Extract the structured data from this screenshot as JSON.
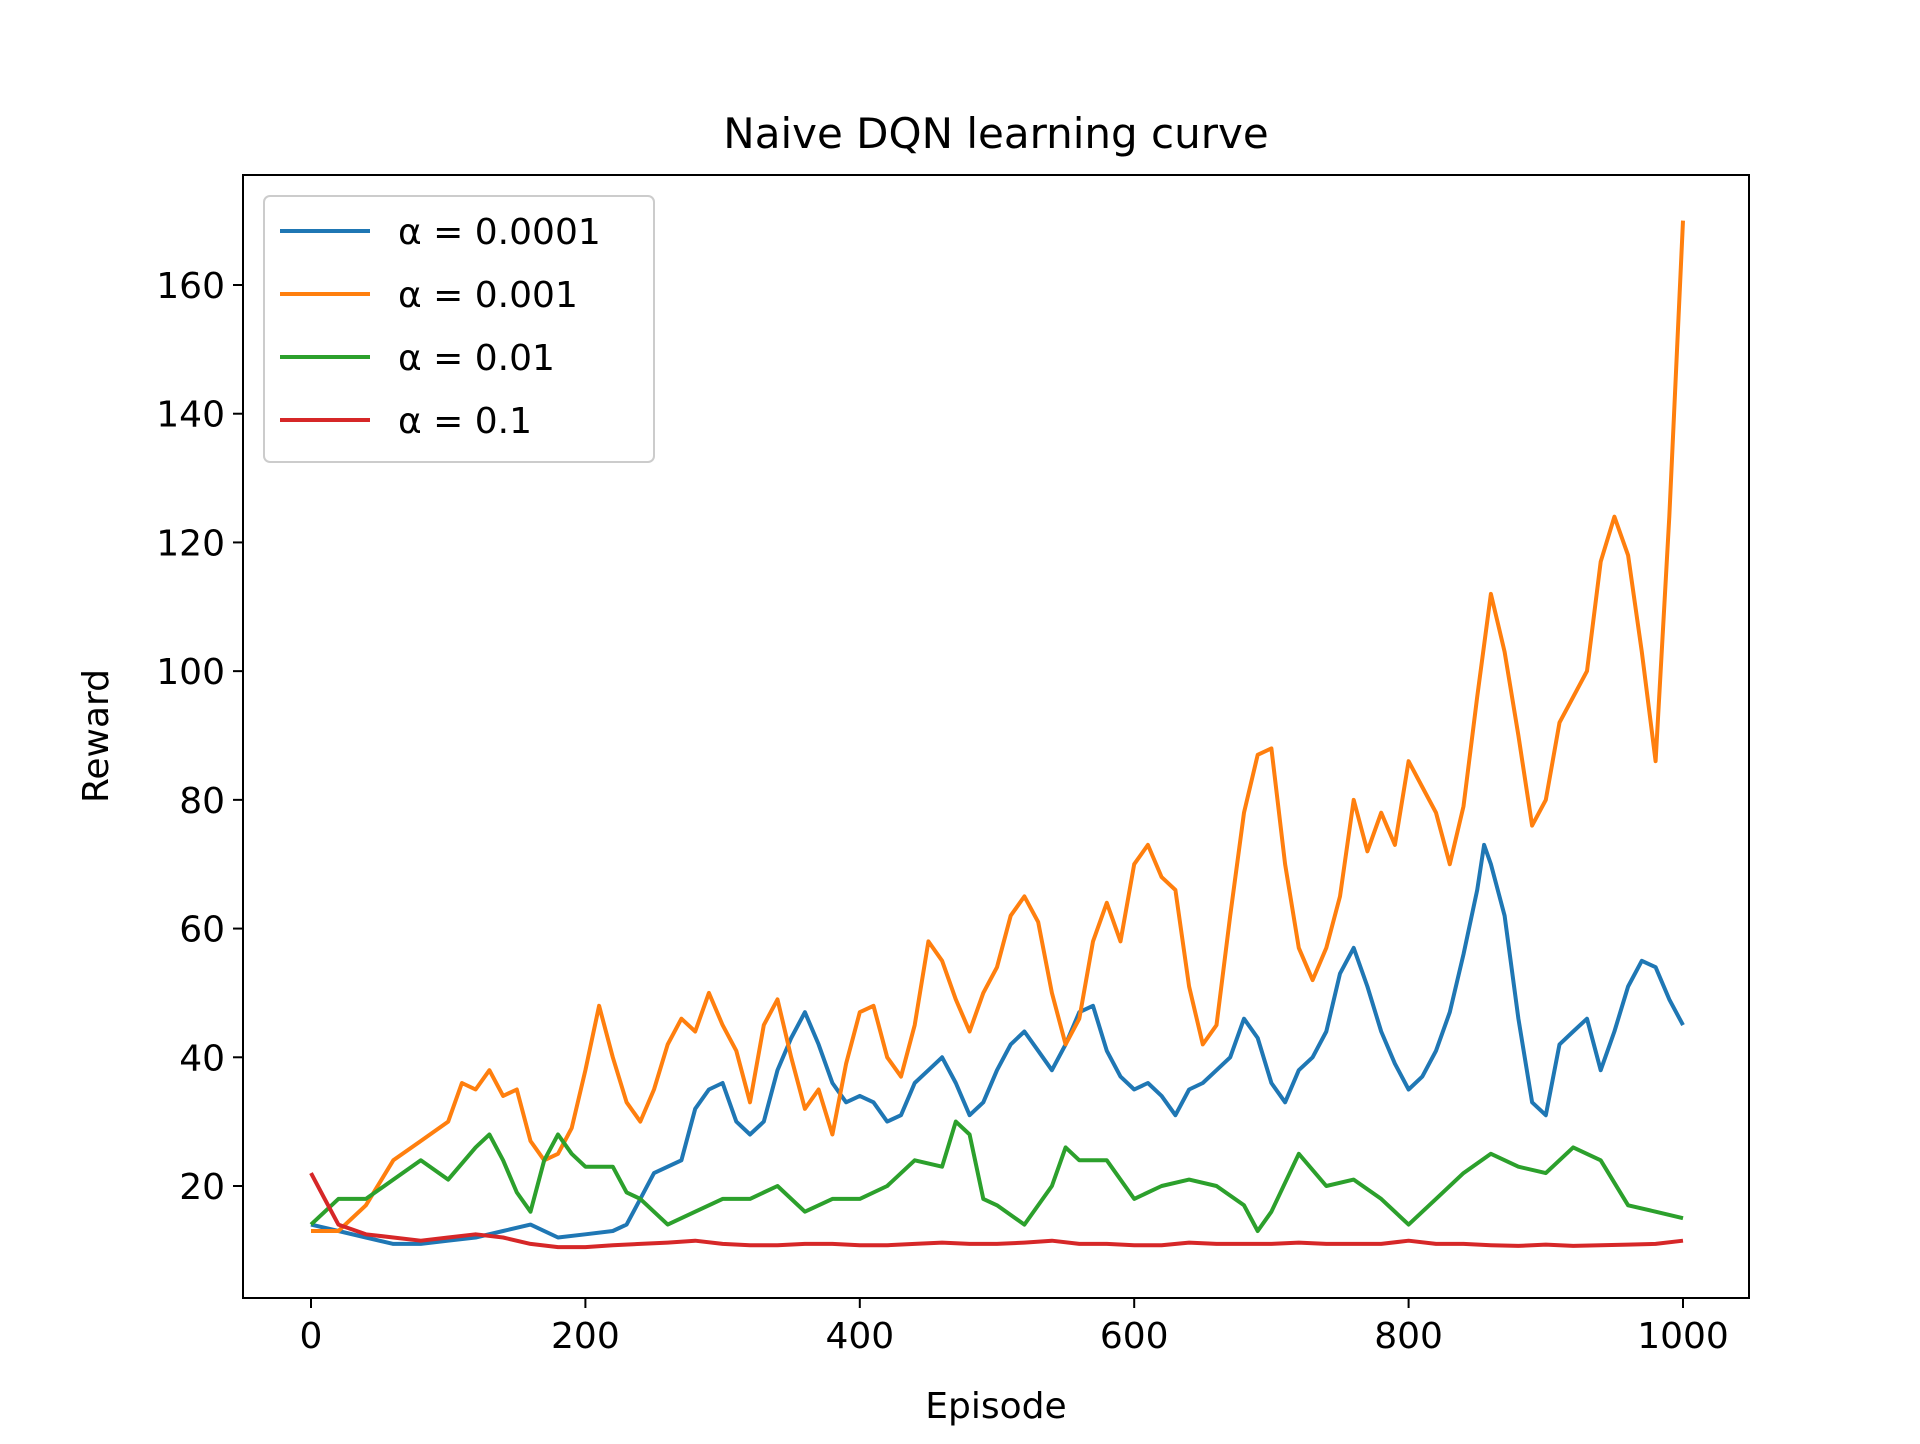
{
  "chart_data": {
    "type": "line",
    "title": "Naive DQN learning curve",
    "xlabel": "Episode",
    "ylabel": "Reward",
    "xlim": [
      -67,
      1450
    ],
    "ylim": [
      -80,
      1900
    ],
    "x_ticks": [
      0,
      200,
      400,
      600,
      800,
      1000
    ],
    "y_ticks": [
      20,
      40,
      60,
      80,
      100,
      120,
      140,
      160
    ],
    "legend_position": "top-left",
    "grid": false,
    "colors": {
      "blue": "#1f77b4",
      "orange": "#ff7f0e",
      "green": "#2ca02c",
      "red": "#d62728"
    },
    "series": [
      {
        "name": "α = 0.0001",
        "color": "#1f77b4",
        "points": [
          [
            0,
            14
          ],
          [
            20,
            13
          ],
          [
            40,
            12
          ],
          [
            60,
            11
          ],
          [
            80,
            11
          ],
          [
            100,
            11.5
          ],
          [
            120,
            12
          ],
          [
            140,
            13
          ],
          [
            160,
            14
          ],
          [
            180,
            12
          ],
          [
            200,
            12.5
          ],
          [
            220,
            13
          ],
          [
            230,
            14
          ],
          [
            240,
            18
          ],
          [
            250,
            22
          ],
          [
            260,
            23
          ],
          [
            270,
            24
          ],
          [
            280,
            32
          ],
          [
            290,
            35
          ],
          [
            300,
            36
          ],
          [
            310,
            30
          ],
          [
            320,
            28
          ],
          [
            330,
            30
          ],
          [
            340,
            38
          ],
          [
            350,
            43
          ],
          [
            360,
            47
          ],
          [
            370,
            42
          ],
          [
            380,
            36
          ],
          [
            390,
            33
          ],
          [
            400,
            34
          ],
          [
            410,
            33
          ],
          [
            420,
            30
          ],
          [
            430,
            31
          ],
          [
            440,
            36
          ],
          [
            450,
            38
          ],
          [
            460,
            40
          ],
          [
            470,
            36
          ],
          [
            480,
            31
          ],
          [
            490,
            33
          ],
          [
            500,
            38
          ],
          [
            510,
            42
          ],
          [
            520,
            44
          ],
          [
            530,
            41
          ],
          [
            540,
            38
          ],
          [
            550,
            42
          ],
          [
            560,
            47
          ],
          [
            570,
            48
          ],
          [
            580,
            41
          ],
          [
            590,
            37
          ],
          [
            600,
            35
          ],
          [
            610,
            36
          ],
          [
            620,
            34
          ],
          [
            630,
            31
          ],
          [
            640,
            35
          ],
          [
            650,
            36
          ],
          [
            660,
            38
          ],
          [
            670,
            40
          ],
          [
            680,
            46
          ],
          [
            690,
            43
          ],
          [
            700,
            36
          ],
          [
            710,
            33
          ],
          [
            720,
            38
          ],
          [
            730,
            40
          ],
          [
            740,
            44
          ],
          [
            750,
            53
          ],
          [
            760,
            57
          ],
          [
            770,
            51
          ],
          [
            780,
            44
          ],
          [
            790,
            39
          ],
          [
            800,
            35
          ],
          [
            810,
            37
          ],
          [
            820,
            41
          ],
          [
            830,
            47
          ],
          [
            840,
            56
          ],
          [
            850,
            66
          ],
          [
            855,
            73
          ],
          [
            860,
            70
          ],
          [
            870,
            62
          ],
          [
            880,
            46
          ],
          [
            890,
            33
          ],
          [
            900,
            31
          ],
          [
            910,
            42
          ],
          [
            920,
            44
          ],
          [
            930,
            46
          ],
          [
            940,
            38
          ],
          [
            950,
            44
          ],
          [
            960,
            51
          ],
          [
            970,
            55
          ],
          [
            980,
            54
          ],
          [
            990,
            49
          ],
          [
            1000,
            45
          ]
        ]
      },
      {
        "name": "α = 0.001",
        "color": "#ff7f0e",
        "points": [
          [
            0,
            13
          ],
          [
            20,
            13
          ],
          [
            40,
            17
          ],
          [
            60,
            24
          ],
          [
            80,
            27
          ],
          [
            100,
            30
          ],
          [
            110,
            36
          ],
          [
            120,
            35
          ],
          [
            130,
            38
          ],
          [
            140,
            34
          ],
          [
            150,
            35
          ],
          [
            160,
            27
          ],
          [
            170,
            24
          ],
          [
            180,
            25
          ],
          [
            190,
            29
          ],
          [
            200,
            38
          ],
          [
            210,
            48
          ],
          [
            220,
            40
          ],
          [
            230,
            33
          ],
          [
            240,
            30
          ],
          [
            250,
            35
          ],
          [
            260,
            42
          ],
          [
            270,
            46
          ],
          [
            280,
            44
          ],
          [
            290,
            50
          ],
          [
            300,
            45
          ],
          [
            310,
            41
          ],
          [
            320,
            33
          ],
          [
            330,
            45
          ],
          [
            340,
            49
          ],
          [
            350,
            40
          ],
          [
            360,
            32
          ],
          [
            370,
            35
          ],
          [
            380,
            28
          ],
          [
            390,
            39
          ],
          [
            400,
            47
          ],
          [
            410,
            48
          ],
          [
            420,
            40
          ],
          [
            430,
            37
          ],
          [
            440,
            45
          ],
          [
            450,
            58
          ],
          [
            460,
            55
          ],
          [
            470,
            49
          ],
          [
            480,
            44
          ],
          [
            490,
            50
          ],
          [
            500,
            54
          ],
          [
            510,
            62
          ],
          [
            520,
            65
          ],
          [
            530,
            61
          ],
          [
            540,
            50
          ],
          [
            550,
            42
          ],
          [
            560,
            46
          ],
          [
            570,
            58
          ],
          [
            580,
            64
          ],
          [
            590,
            58
          ],
          [
            600,
            70
          ],
          [
            610,
            73
          ],
          [
            620,
            68
          ],
          [
            630,
            66
          ],
          [
            640,
            51
          ],
          [
            650,
            42
          ],
          [
            660,
            45
          ],
          [
            670,
            62
          ],
          [
            680,
            78
          ],
          [
            690,
            87
          ],
          [
            700,
            88
          ],
          [
            710,
            70
          ],
          [
            720,
            57
          ],
          [
            730,
            52
          ],
          [
            740,
            57
          ],
          [
            750,
            65
          ],
          [
            760,
            80
          ],
          [
            770,
            72
          ],
          [
            780,
            78
          ],
          [
            790,
            73
          ],
          [
            800,
            86
          ],
          [
            810,
            82
          ],
          [
            820,
            78
          ],
          [
            830,
            70
          ],
          [
            840,
            79
          ],
          [
            850,
            96
          ],
          [
            860,
            112
          ],
          [
            870,
            103
          ],
          [
            880,
            90
          ],
          [
            890,
            76
          ],
          [
            900,
            80
          ],
          [
            910,
            92
          ],
          [
            920,
            96
          ],
          [
            930,
            100
          ],
          [
            940,
            117
          ],
          [
            950,
            124
          ],
          [
            960,
            118
          ],
          [
            970,
            103
          ],
          [
            980,
            86
          ],
          [
            990,
            124
          ],
          [
            1000,
            170
          ]
        ]
      },
      {
        "name": "α = 0.01",
        "color": "#2ca02c",
        "points": [
          [
            0,
            14
          ],
          [
            20,
            18
          ],
          [
            40,
            18
          ],
          [
            60,
            21
          ],
          [
            80,
            24
          ],
          [
            100,
            21
          ],
          [
            120,
            26
          ],
          [
            130,
            28
          ],
          [
            140,
            24
          ],
          [
            150,
            19
          ],
          [
            160,
            16
          ],
          [
            170,
            24
          ],
          [
            180,
            28
          ],
          [
            190,
            25
          ],
          [
            200,
            23
          ],
          [
            220,
            23
          ],
          [
            230,
            19
          ],
          [
            240,
            18
          ],
          [
            260,
            14
          ],
          [
            280,
            16
          ],
          [
            300,
            18
          ],
          [
            320,
            18
          ],
          [
            340,
            20
          ],
          [
            360,
            16
          ],
          [
            380,
            18
          ],
          [
            400,
            18
          ],
          [
            420,
            20
          ],
          [
            440,
            24
          ],
          [
            460,
            23
          ],
          [
            470,
            30
          ],
          [
            480,
            28
          ],
          [
            490,
            18
          ],
          [
            500,
            17
          ],
          [
            520,
            14
          ],
          [
            540,
            20
          ],
          [
            550,
            26
          ],
          [
            560,
            24
          ],
          [
            580,
            24
          ],
          [
            600,
            18
          ],
          [
            620,
            20
          ],
          [
            640,
            21
          ],
          [
            660,
            20
          ],
          [
            680,
            17
          ],
          [
            690,
            13
          ],
          [
            700,
            16
          ],
          [
            720,
            25
          ],
          [
            740,
            20
          ],
          [
            760,
            21
          ],
          [
            780,
            18
          ],
          [
            800,
            14
          ],
          [
            820,
            18
          ],
          [
            840,
            22
          ],
          [
            860,
            25
          ],
          [
            880,
            23
          ],
          [
            900,
            22
          ],
          [
            920,
            26
          ],
          [
            940,
            24
          ],
          [
            960,
            17
          ],
          [
            980,
            16
          ],
          [
            1000,
            15
          ]
        ]
      },
      {
        "name": "α = 0.1",
        "color": "#d62728",
        "points": [
          [
            0,
            22
          ],
          [
            10,
            18
          ],
          [
            20,
            14
          ],
          [
            40,
            12.5
          ],
          [
            60,
            12
          ],
          [
            80,
            11.5
          ],
          [
            100,
            12
          ],
          [
            120,
            12.5
          ],
          [
            140,
            12
          ],
          [
            160,
            11
          ],
          [
            180,
            10.5
          ],
          [
            200,
            10.5
          ],
          [
            220,
            10.8
          ],
          [
            240,
            11
          ],
          [
            260,
            11.2
          ],
          [
            280,
            11.5
          ],
          [
            300,
            11
          ],
          [
            320,
            10.8
          ],
          [
            340,
            10.8
          ],
          [
            360,
            11
          ],
          [
            380,
            11
          ],
          [
            400,
            10.8
          ],
          [
            420,
            10.8
          ],
          [
            440,
            11
          ],
          [
            460,
            11.2
          ],
          [
            480,
            11
          ],
          [
            500,
            11
          ],
          [
            520,
            11.2
          ],
          [
            540,
            11.5
          ],
          [
            560,
            11
          ],
          [
            580,
            11
          ],
          [
            600,
            10.8
          ],
          [
            620,
            10.8
          ],
          [
            640,
            11.2
          ],
          [
            660,
            11
          ],
          [
            680,
            11
          ],
          [
            700,
            11
          ],
          [
            720,
            11.2
          ],
          [
            740,
            11
          ],
          [
            760,
            11
          ],
          [
            780,
            11
          ],
          [
            800,
            11.5
          ],
          [
            820,
            11
          ],
          [
            840,
            11
          ],
          [
            860,
            10.8
          ],
          [
            880,
            10.7
          ],
          [
            900,
            10.9
          ],
          [
            920,
            10.7
          ],
          [
            940,
            10.8
          ],
          [
            960,
            10.9
          ],
          [
            980,
            11
          ],
          [
            1000,
            11.5
          ]
        ]
      }
    ]
  }
}
